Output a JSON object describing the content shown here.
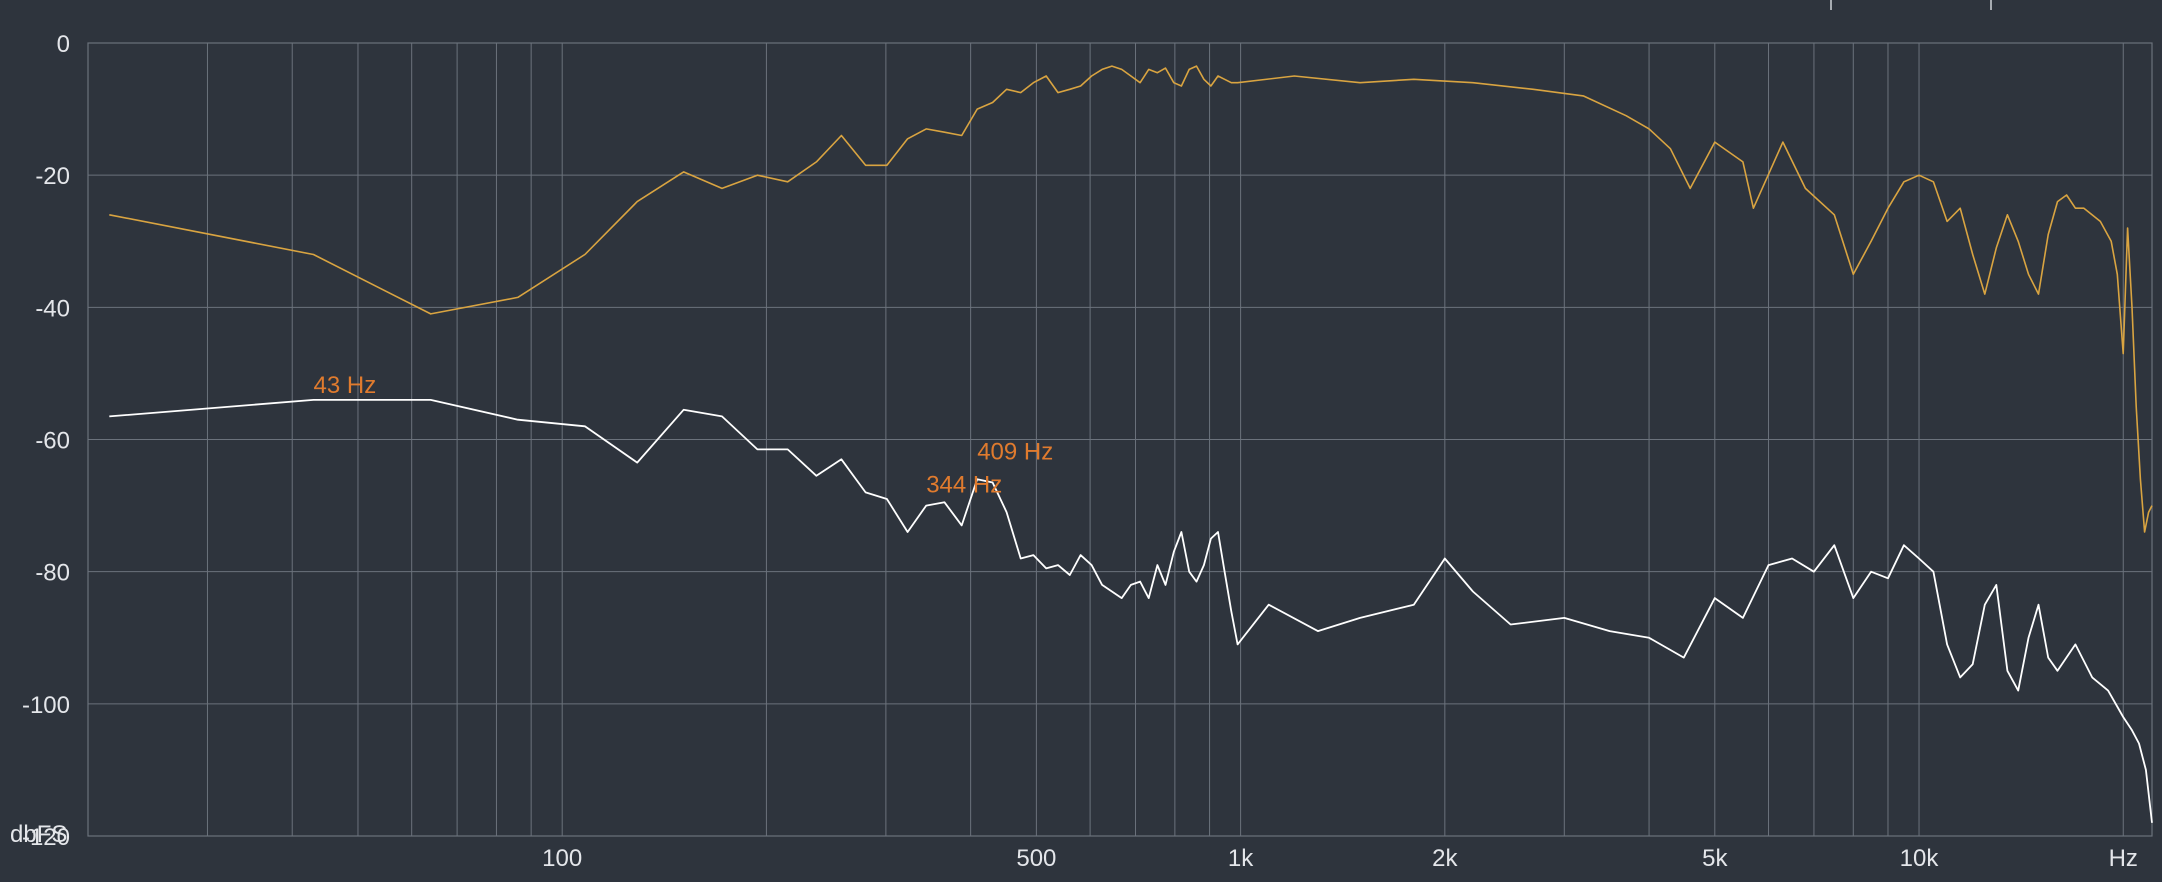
{
  "colors": {
    "background": "#2e343d",
    "grid": "#6b727c",
    "text": "#e4e6ea",
    "series_1": "#d9a441",
    "series_2": "#ffffff",
    "annotation": "#e07b2e"
  },
  "chart_data": {
    "type": "line",
    "x_scale": "log",
    "xlim": [
      20,
      22050
    ],
    "ylim": [
      -120,
      0
    ],
    "grid": true,
    "ylabel": "dbFS",
    "xlabel": "Hz",
    "yticks": [
      0,
      -20,
      -40,
      -60,
      -80,
      -100,
      -120
    ],
    "xticks": [
      {
        "value": 100,
        "label": "100"
      },
      {
        "value": 500,
        "label": "500"
      },
      {
        "value": 1000,
        "label": "1k"
      },
      {
        "value": 2000,
        "label": "2k"
      },
      {
        "value": 5000,
        "label": "5k"
      },
      {
        "value": 10000,
        "label": "10k"
      },
      {
        "value": 20000,
        "label": "Hz"
      }
    ],
    "series": [
      {
        "color": "#d9a441",
        "points": [
          [
            21.5,
            -26
          ],
          [
            43,
            -32
          ],
          [
            64,
            -41
          ],
          [
            86,
            -38.5
          ],
          [
            108,
            -32
          ],
          [
            129,
            -24
          ],
          [
            151,
            -19.5
          ],
          [
            172,
            -22
          ],
          [
            194,
            -20
          ],
          [
            215,
            -21
          ],
          [
            237,
            -18
          ],
          [
            258,
            -14
          ],
          [
            280,
            -18.5
          ],
          [
            301,
            -18.5
          ],
          [
            323,
            -14.5
          ],
          [
            344,
            -13
          ],
          [
            366,
            -13.5
          ],
          [
            388,
            -14
          ],
          [
            409,
            -10
          ],
          [
            431,
            -9
          ],
          [
            452,
            -7
          ],
          [
            474,
            -7.5
          ],
          [
            495,
            -6
          ],
          [
            517,
            -5
          ],
          [
            538,
            -7.5
          ],
          [
            560,
            -7
          ],
          [
            581,
            -6.5
          ],
          [
            603,
            -5
          ],
          [
            625,
            -4
          ],
          [
            646,
            -3.5
          ],
          [
            668,
            -4
          ],
          [
            689,
            -5
          ],
          [
            711,
            -6
          ],
          [
            732,
            -4
          ],
          [
            754,
            -4.5
          ],
          [
            775,
            -3.8
          ],
          [
            797,
            -6
          ],
          [
            818,
            -6.5
          ],
          [
            840,
            -4
          ],
          [
            861,
            -3.5
          ],
          [
            883,
            -5.5
          ],
          [
            904,
            -6.5
          ],
          [
            926,
            -5
          ],
          [
            947,
            -5.5
          ],
          [
            969,
            -6
          ],
          [
            990,
            -6
          ],
          [
            1200,
            -5
          ],
          [
            1500,
            -6
          ],
          [
            1800,
            -5.5
          ],
          [
            2200,
            -6
          ],
          [
            2700,
            -7
          ],
          [
            3200,
            -8
          ],
          [
            3700,
            -11
          ],
          [
            4000,
            -13
          ],
          [
            4300,
            -16
          ],
          [
            4600,
            -22
          ],
          [
            5000,
            -15
          ],
          [
            5500,
            -18
          ],
          [
            5700,
            -25
          ],
          [
            6300,
            -15
          ],
          [
            6800,
            -22
          ],
          [
            7500,
            -26
          ],
          [
            8000,
            -35
          ],
          [
            8500,
            -30
          ],
          [
            9000,
            -25
          ],
          [
            9500,
            -21
          ],
          [
            10000,
            -20
          ],
          [
            10500,
            -21
          ],
          [
            11000,
            -27
          ],
          [
            11500,
            -25
          ],
          [
            12000,
            -32
          ],
          [
            12500,
            -38
          ],
          [
            13000,
            -31
          ],
          [
            13500,
            -26
          ],
          [
            14000,
            -30
          ],
          [
            14500,
            -35
          ],
          [
            15000,
            -38
          ],
          [
            15500,
            -29
          ],
          [
            16000,
            -24
          ],
          [
            16500,
            -23
          ],
          [
            17000,
            -25
          ],
          [
            17500,
            -25
          ],
          [
            18500,
            -27
          ],
          [
            19200,
            -30
          ],
          [
            19600,
            -35
          ],
          [
            20000,
            -47
          ],
          [
            20300,
            -28
          ],
          [
            20600,
            -40
          ],
          [
            20900,
            -55
          ],
          [
            21200,
            -66
          ],
          [
            21500,
            -74
          ],
          [
            21800,
            -71
          ],
          [
            22050,
            -70
          ]
        ]
      },
      {
        "color": "#ffffff",
        "points": [
          [
            21.5,
            -56.5
          ],
          [
            43,
            -54
          ],
          [
            64,
            -54
          ],
          [
            86,
            -57
          ],
          [
            108,
            -58
          ],
          [
            129,
            -63.5
          ],
          [
            151,
            -55.5
          ],
          [
            172,
            -56.5
          ],
          [
            194,
            -61.5
          ],
          [
            215,
            -61.5
          ],
          [
            237,
            -65.5
          ],
          [
            258,
            -63
          ],
          [
            280,
            -68
          ],
          [
            301,
            -69
          ],
          [
            323,
            -74
          ],
          [
            344,
            -70
          ],
          [
            366,
            -69.5
          ],
          [
            388,
            -73
          ],
          [
            409,
            -66
          ],
          [
            431,
            -66.5
          ],
          [
            452,
            -71
          ],
          [
            474,
            -78
          ],
          [
            495,
            -77.5
          ],
          [
            517,
            -79.5
          ],
          [
            538,
            -79
          ],
          [
            560,
            -80.5
          ],
          [
            581,
            -77.5
          ],
          [
            603,
            -79
          ],
          [
            625,
            -82
          ],
          [
            646,
            -83
          ],
          [
            668,
            -84
          ],
          [
            689,
            -82
          ],
          [
            711,
            -81.5
          ],
          [
            732,
            -84
          ],
          [
            754,
            -79
          ],
          [
            775,
            -82
          ],
          [
            797,
            -77
          ],
          [
            818,
            -74
          ],
          [
            840,
            -80
          ],
          [
            861,
            -81.5
          ],
          [
            883,
            -79
          ],
          [
            904,
            -75
          ],
          [
            926,
            -74
          ],
          [
            947,
            -80
          ],
          [
            969,
            -86
          ],
          [
            990,
            -91
          ],
          [
            1100,
            -85
          ],
          [
            1300,
            -89
          ],
          [
            1500,
            -87
          ],
          [
            1800,
            -85
          ],
          [
            2000,
            -78
          ],
          [
            2200,
            -83
          ],
          [
            2500,
            -88
          ],
          [
            3000,
            -87
          ],
          [
            3500,
            -89
          ],
          [
            4000,
            -90
          ],
          [
            4500,
            -93
          ],
          [
            5000,
            -84
          ],
          [
            5500,
            -87
          ],
          [
            6000,
            -79
          ],
          [
            6500,
            -78
          ],
          [
            7000,
            -80
          ],
          [
            7500,
            -76
          ],
          [
            8000,
            -84
          ],
          [
            8500,
            -80
          ],
          [
            9000,
            -81
          ],
          [
            9500,
            -76
          ],
          [
            10000,
            -78
          ],
          [
            10500,
            -80
          ],
          [
            11000,
            -91
          ],
          [
            11500,
            -96
          ],
          [
            12000,
            -94
          ],
          [
            12500,
            -85
          ],
          [
            13000,
            -82
          ],
          [
            13500,
            -95
          ],
          [
            14000,
            -98
          ],
          [
            14500,
            -90
          ],
          [
            15000,
            -85
          ],
          [
            15500,
            -93
          ],
          [
            16000,
            -95
          ],
          [
            17000,
            -91
          ],
          [
            18000,
            -96
          ],
          [
            19000,
            -98
          ],
          [
            20000,
            -102
          ],
          [
            20600,
            -104
          ],
          [
            21100,
            -106
          ],
          [
            21600,
            -110
          ],
          [
            22050,
            -118
          ]
        ]
      }
    ],
    "annotations": [
      {
        "label": "43 Hz",
        "x": 43,
        "y": -53
      },
      {
        "label": "409 Hz",
        "x": 409,
        "y": -63
      },
      {
        "label": "344 Hz",
        "x": 344,
        "y": -68
      }
    ]
  }
}
